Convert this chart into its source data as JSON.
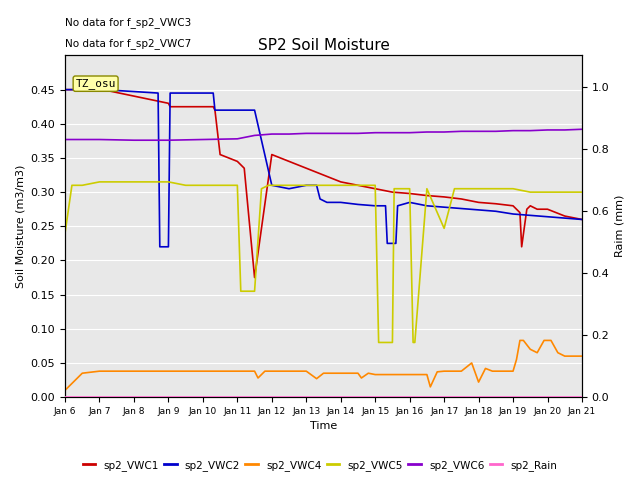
{
  "title": "SP2 Soil Moisture",
  "ylabel_left": "Soil Moisture (m3/m3)",
  "ylabel_right": "Raim (mm)",
  "xlabel": "Time",
  "no_data_text": [
    "No data for f_sp2_VWC3",
    "No data for f_sp2_VWC7"
  ],
  "tz_label": "TZ_osu",
  "xlim": [
    6,
    21
  ],
  "ylim_left": [
    0.0,
    0.5
  ],
  "ylim_right": [
    0.0,
    1.1
  ],
  "yticks_left": [
    0.0,
    0.05,
    0.1,
    0.15,
    0.2,
    0.25,
    0.3,
    0.35,
    0.4,
    0.45
  ],
  "yticks_right": [
    0.0,
    0.2,
    0.4,
    0.6,
    0.8,
    1.0
  ],
  "xtick_positions": [
    6,
    7,
    8,
    9,
    10,
    11,
    12,
    13,
    14,
    15,
    16,
    17,
    18,
    19,
    20,
    21
  ],
  "xtick_labels": [
    "Jan 6",
    "Jan 7",
    "Jan 8",
    "Jan 9",
    "Jan 10",
    "Jan 11",
    "Jan 12",
    "Jan 13",
    "Jan 14",
    "Jan 15",
    "Jan 16",
    "Jan 17",
    "Jan 18",
    "Jan 19",
    "Jan 20",
    "Jan 21"
  ],
  "colors": {
    "VWC1": "#cc0000",
    "VWC2": "#0000cc",
    "VWC4": "#ff8800",
    "VWC5": "#cccc00",
    "VWC6": "#8800cc",
    "Rain": "#ff66cc",
    "bg": "#e8e8e8"
  },
  "legend_entries": [
    {
      "label": "sp2_VWC1",
      "color": "#cc0000"
    },
    {
      "label": "sp2_VWC2",
      "color": "#0000cc"
    },
    {
      "label": "sp2_VWC4",
      "color": "#ff8800"
    },
    {
      "label": "sp2_VWC5",
      "color": "#cccc00"
    },
    {
      "label": "sp2_VWC6",
      "color": "#8800cc"
    },
    {
      "label": "sp2_Rain",
      "color": "#ff66cc"
    }
  ],
  "VWC1": {
    "x": [
      6,
      7,
      7.1,
      9.0,
      9.05,
      10.3,
      10.35,
      10.5,
      11.0,
      11.2,
      11.5,
      12.0,
      12.5,
      13.0,
      13.5,
      14.0,
      14.5,
      15.0,
      15.5,
      16.0,
      16.5,
      17.0,
      17.5,
      18.0,
      18.5,
      19.0,
      19.2,
      19.25,
      19.4,
      19.5,
      19.7,
      20.0,
      20.5,
      21.0
    ],
    "y": [
      0.45,
      0.45,
      0.45,
      0.43,
      0.425,
      0.425,
      0.42,
      0.355,
      0.345,
      0.335,
      0.175,
      0.355,
      0.345,
      0.335,
      0.325,
      0.315,
      0.31,
      0.305,
      0.3,
      0.298,
      0.295,
      0.293,
      0.29,
      0.285,
      0.283,
      0.28,
      0.27,
      0.22,
      0.275,
      0.28,
      0.275,
      0.275,
      0.265,
      0.26
    ]
  },
  "VWC2": {
    "x": [
      6,
      7,
      7.1,
      8.7,
      8.75,
      9.0,
      9.05,
      9.2,
      9.3,
      10.3,
      10.35,
      10.5,
      10.55,
      11.0,
      11.5,
      12.0,
      12.5,
      13.0,
      13.3,
      13.4,
      13.6,
      13.7,
      14.0,
      14.5,
      15.0,
      15.3,
      15.35,
      15.6,
      15.65,
      16.0,
      16.5,
      17.0,
      17.5,
      18.0,
      18.5,
      19.0,
      19.5,
      20.0,
      20.5,
      21.0
    ],
    "y": [
      0.45,
      0.45,
      0.45,
      0.445,
      0.22,
      0.22,
      0.445,
      0.445,
      0.445,
      0.445,
      0.42,
      0.42,
      0.42,
      0.42,
      0.42,
      0.31,
      0.305,
      0.31,
      0.31,
      0.29,
      0.285,
      0.285,
      0.285,
      0.282,
      0.28,
      0.28,
      0.225,
      0.225,
      0.28,
      0.285,
      0.28,
      0.278,
      0.276,
      0.274,
      0.272,
      0.268,
      0.266,
      0.264,
      0.262,
      0.26
    ]
  },
  "VWC4": {
    "x": [
      6,
      6.5,
      7.0,
      7.5,
      8.0,
      8.5,
      9.0,
      9.5,
      10.0,
      10.5,
      11.0,
      11.5,
      11.6,
      11.8,
      12.0,
      12.5,
      13.0,
      13.3,
      13.5,
      14.0,
      14.5,
      14.6,
      14.8,
      15.0,
      15.5,
      16.0,
      16.5,
      16.6,
      16.8,
      17.0,
      17.5,
      17.8,
      18.0,
      18.2,
      18.4,
      18.6,
      18.8,
      19.0,
      19.1,
      19.2,
      19.3,
      19.5,
      19.7,
      19.9,
      20.1,
      20.3,
      20.5,
      21.0
    ],
    "y": [
      0.01,
      0.035,
      0.038,
      0.038,
      0.038,
      0.038,
      0.038,
      0.038,
      0.038,
      0.038,
      0.038,
      0.038,
      0.028,
      0.038,
      0.038,
      0.038,
      0.038,
      0.027,
      0.035,
      0.035,
      0.035,
      0.028,
      0.035,
      0.033,
      0.033,
      0.033,
      0.033,
      0.015,
      0.037,
      0.038,
      0.038,
      0.05,
      0.022,
      0.042,
      0.038,
      0.038,
      0.038,
      0.038,
      0.055,
      0.083,
      0.083,
      0.07,
      0.065,
      0.083,
      0.083,
      0.065,
      0.06,
      0.06
    ]
  },
  "VWC5": {
    "x": [
      6,
      6.2,
      6.5,
      7.0,
      7.5,
      8.0,
      8.5,
      9.0,
      9.5,
      10.0,
      10.5,
      11.0,
      11.1,
      11.5,
      11.7,
      11.9,
      12.0,
      12.5,
      13.0,
      13.5,
      14.0,
      14.5,
      15.0,
      15.1,
      15.15,
      15.5,
      15.55,
      16.0,
      16.1,
      16.15,
      16.5,
      17.0,
      17.3,
      17.5,
      18.0,
      18.5,
      19.0,
      19.5,
      20.0,
      20.5,
      21.0
    ],
    "y": [
      0.24,
      0.31,
      0.31,
      0.315,
      0.315,
      0.315,
      0.315,
      0.315,
      0.31,
      0.31,
      0.31,
      0.31,
      0.155,
      0.155,
      0.305,
      0.31,
      0.31,
      0.31,
      0.31,
      0.31,
      0.31,
      0.31,
      0.31,
      0.08,
      0.08,
      0.08,
      0.305,
      0.305,
      0.08,
      0.08,
      0.305,
      0.247,
      0.305,
      0.305,
      0.305,
      0.305,
      0.305,
      0.3,
      0.3,
      0.3,
      0.3
    ]
  },
  "VWC6": {
    "x": [
      6,
      7,
      8,
      9,
      10,
      11,
      11.5,
      12,
      12.5,
      13,
      13.5,
      14,
      14.5,
      15,
      15.5,
      16,
      16.5,
      17,
      17.5,
      18,
      18.5,
      19,
      19.5,
      20,
      20.5,
      21
    ],
    "y": [
      0.377,
      0.377,
      0.376,
      0.376,
      0.377,
      0.378,
      0.383,
      0.385,
      0.385,
      0.386,
      0.386,
      0.386,
      0.386,
      0.387,
      0.387,
      0.387,
      0.388,
      0.388,
      0.389,
      0.389,
      0.389,
      0.39,
      0.39,
      0.391,
      0.391,
      0.392
    ]
  },
  "Rain": {
    "x": [
      6,
      21
    ],
    "y": [
      0.0,
      0.0
    ]
  }
}
